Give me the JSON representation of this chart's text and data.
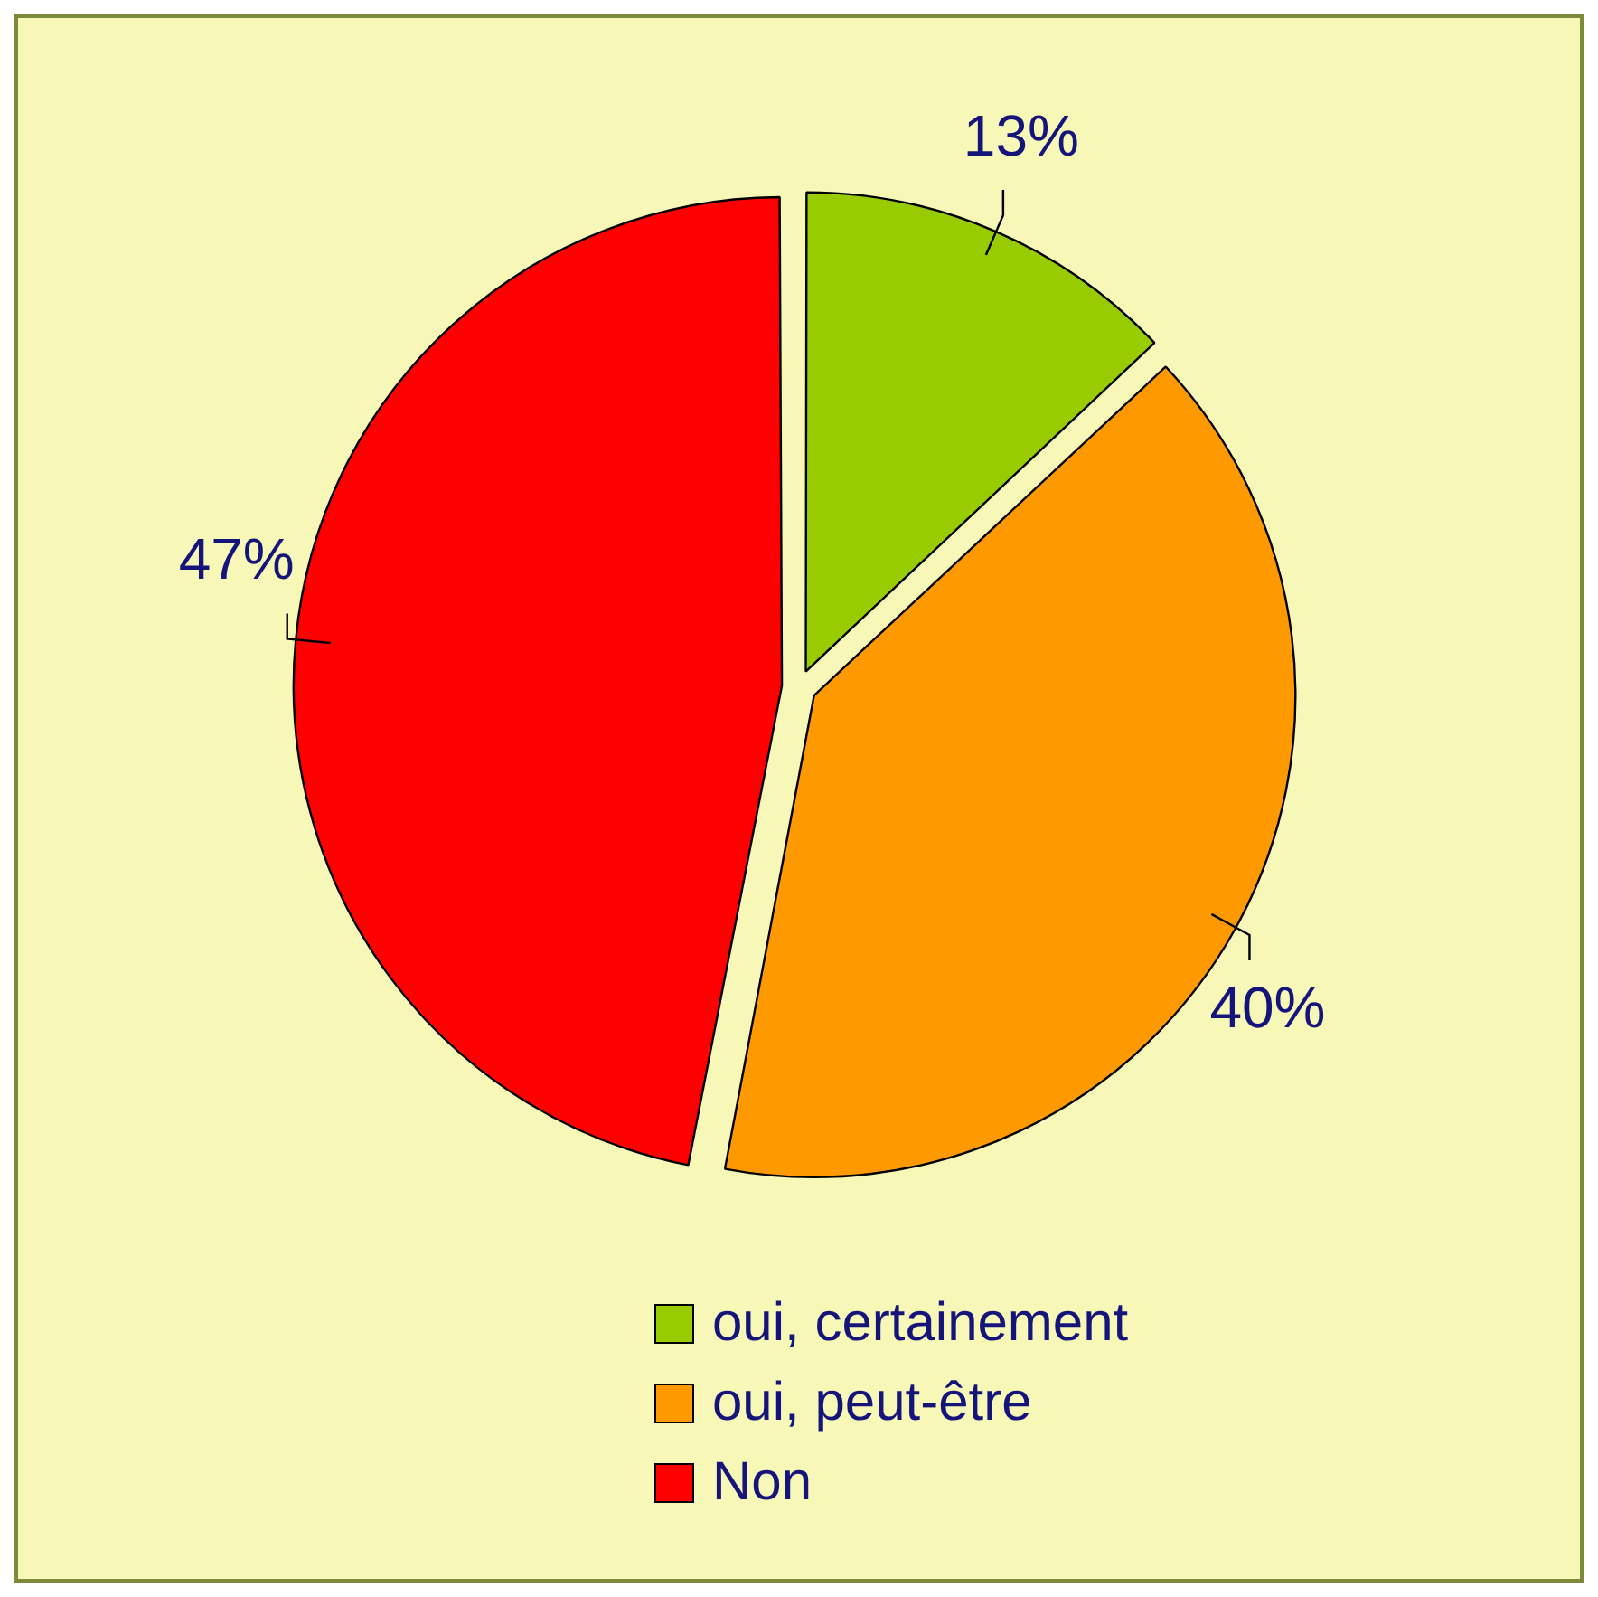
{
  "chart_data": {
    "type": "pie",
    "categories": [
      "oui, certainement",
      "oui, peut-être",
      "Non"
    ],
    "values": [
      13,
      40,
      47
    ],
    "colors": [
      "#99cc00",
      "#ff9900",
      "#ff0000"
    ],
    "value_labels": [
      "13%",
      "40%",
      "47%"
    ],
    "legend": "bottom"
  }
}
